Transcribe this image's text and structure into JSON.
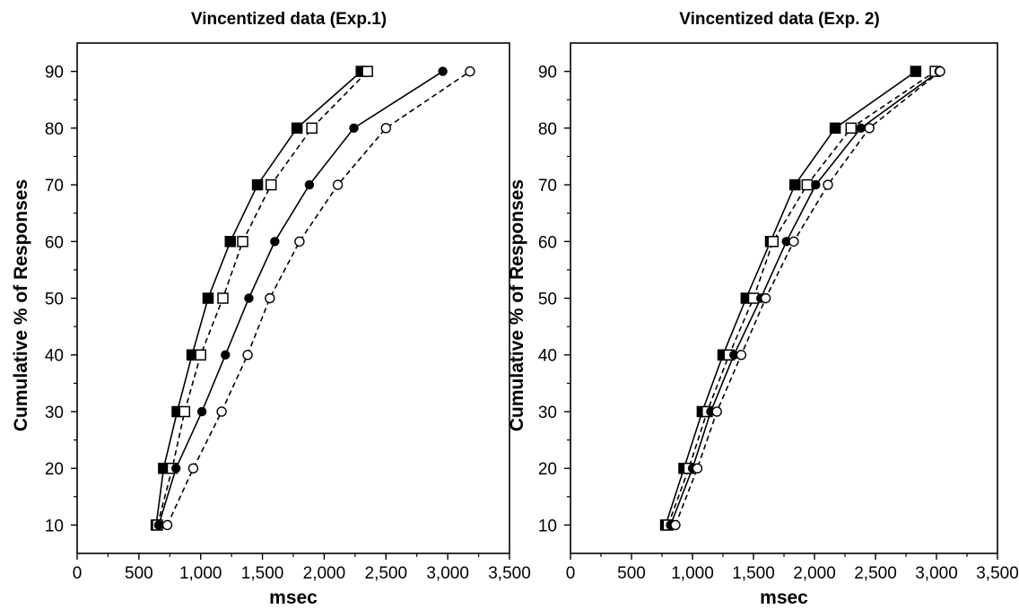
{
  "chart_data": [
    {
      "type": "line",
      "title": "Vincentized data (Exp.1)",
      "xlabel": "msec",
      "ylabel": "Cumulative % of Responses",
      "xlim": [
        0,
        3500
      ],
      "ylim": [
        5,
        95
      ],
      "x_ticks": [
        0,
        500,
        1000,
        1500,
        2000,
        2500,
        3000,
        3500
      ],
      "x_tick_labels": [
        "0",
        "500",
        "1,000",
        "1,500",
        "2,000",
        "2,500",
        "3,000",
        "3,500"
      ],
      "y_ticks": [
        10,
        20,
        30,
        40,
        50,
        60,
        70,
        80,
        90
      ],
      "y_tick_labels": [
        "10",
        "20",
        "30",
        "40",
        "50",
        "60",
        "70",
        "80",
        "90"
      ],
      "grid": false,
      "legend": "none",
      "series": [
        {
          "marker": "filled-square",
          "line": "solid",
          "x": [
            640,
            700,
            810,
            930,
            1060,
            1240,
            1460,
            1780,
            2300
          ],
          "y": [
            10,
            20,
            30,
            40,
            50,
            60,
            70,
            80,
            90
          ]
        },
        {
          "marker": "open-square",
          "line": "dashed",
          "x": [
            650,
            770,
            870,
            1000,
            1180,
            1340,
            1570,
            1900,
            2350
          ],
          "y": [
            10,
            20,
            30,
            40,
            50,
            60,
            70,
            80,
            90
          ]
        },
        {
          "marker": "filled-circle",
          "line": "solid",
          "x": [
            660,
            800,
            1010,
            1200,
            1390,
            1600,
            1880,
            2240,
            2960
          ],
          "y": [
            10,
            20,
            30,
            40,
            50,
            60,
            70,
            80,
            90
          ]
        },
        {
          "marker": "open-circle",
          "line": "dashed",
          "x": [
            730,
            940,
            1170,
            1380,
            1560,
            1800,
            2110,
            2500,
            3180
          ],
          "y": [
            10,
            20,
            30,
            40,
            50,
            60,
            70,
            80,
            90
          ]
        }
      ]
    },
    {
      "type": "line",
      "title": "Vincentized data (Exp. 2)",
      "xlabel": "msec",
      "ylabel": "Cumulative % of Responses",
      "xlim": [
        0,
        3500
      ],
      "ylim": [
        5,
        95
      ],
      "x_ticks": [
        0,
        500,
        1000,
        1500,
        2000,
        2500,
        3000,
        3500
      ],
      "x_tick_labels": [
        "0",
        "500",
        "1,000",
        "1,500",
        "2,000",
        "2,500",
        "3,000",
        "3,500"
      ],
      "y_ticks": [
        10,
        20,
        30,
        40,
        50,
        60,
        70,
        80,
        90
      ],
      "y_tick_labels": [
        "10",
        "20",
        "30",
        "40",
        "50",
        "60",
        "70",
        "80",
        "90"
      ],
      "grid": false,
      "legend": "none",
      "series": [
        {
          "marker": "filled-square",
          "line": "solid",
          "x": [
            780,
            930,
            1080,
            1250,
            1440,
            1640,
            1840,
            2170,
            2830
          ],
          "y": [
            10,
            20,
            30,
            40,
            50,
            60,
            70,
            80,
            90
          ]
        },
        {
          "marker": "open-square",
          "line": "dashed",
          "x": [
            800,
            970,
            1120,
            1300,
            1500,
            1660,
            1940,
            2300,
            2990
          ],
          "y": [
            10,
            20,
            30,
            40,
            50,
            60,
            70,
            80,
            90
          ]
        },
        {
          "marker": "filled-circle",
          "line": "solid",
          "x": [
            820,
            1000,
            1150,
            1340,
            1560,
            1770,
            2010,
            2380,
            3020
          ],
          "y": [
            10,
            20,
            30,
            40,
            50,
            60,
            70,
            80,
            90
          ]
        },
        {
          "marker": "open-circle",
          "line": "dashed",
          "x": [
            860,
            1040,
            1200,
            1400,
            1600,
            1830,
            2110,
            2450,
            3030
          ],
          "y": [
            10,
            20,
            30,
            40,
            50,
            60,
            70,
            80,
            90
          ]
        }
      ]
    }
  ]
}
